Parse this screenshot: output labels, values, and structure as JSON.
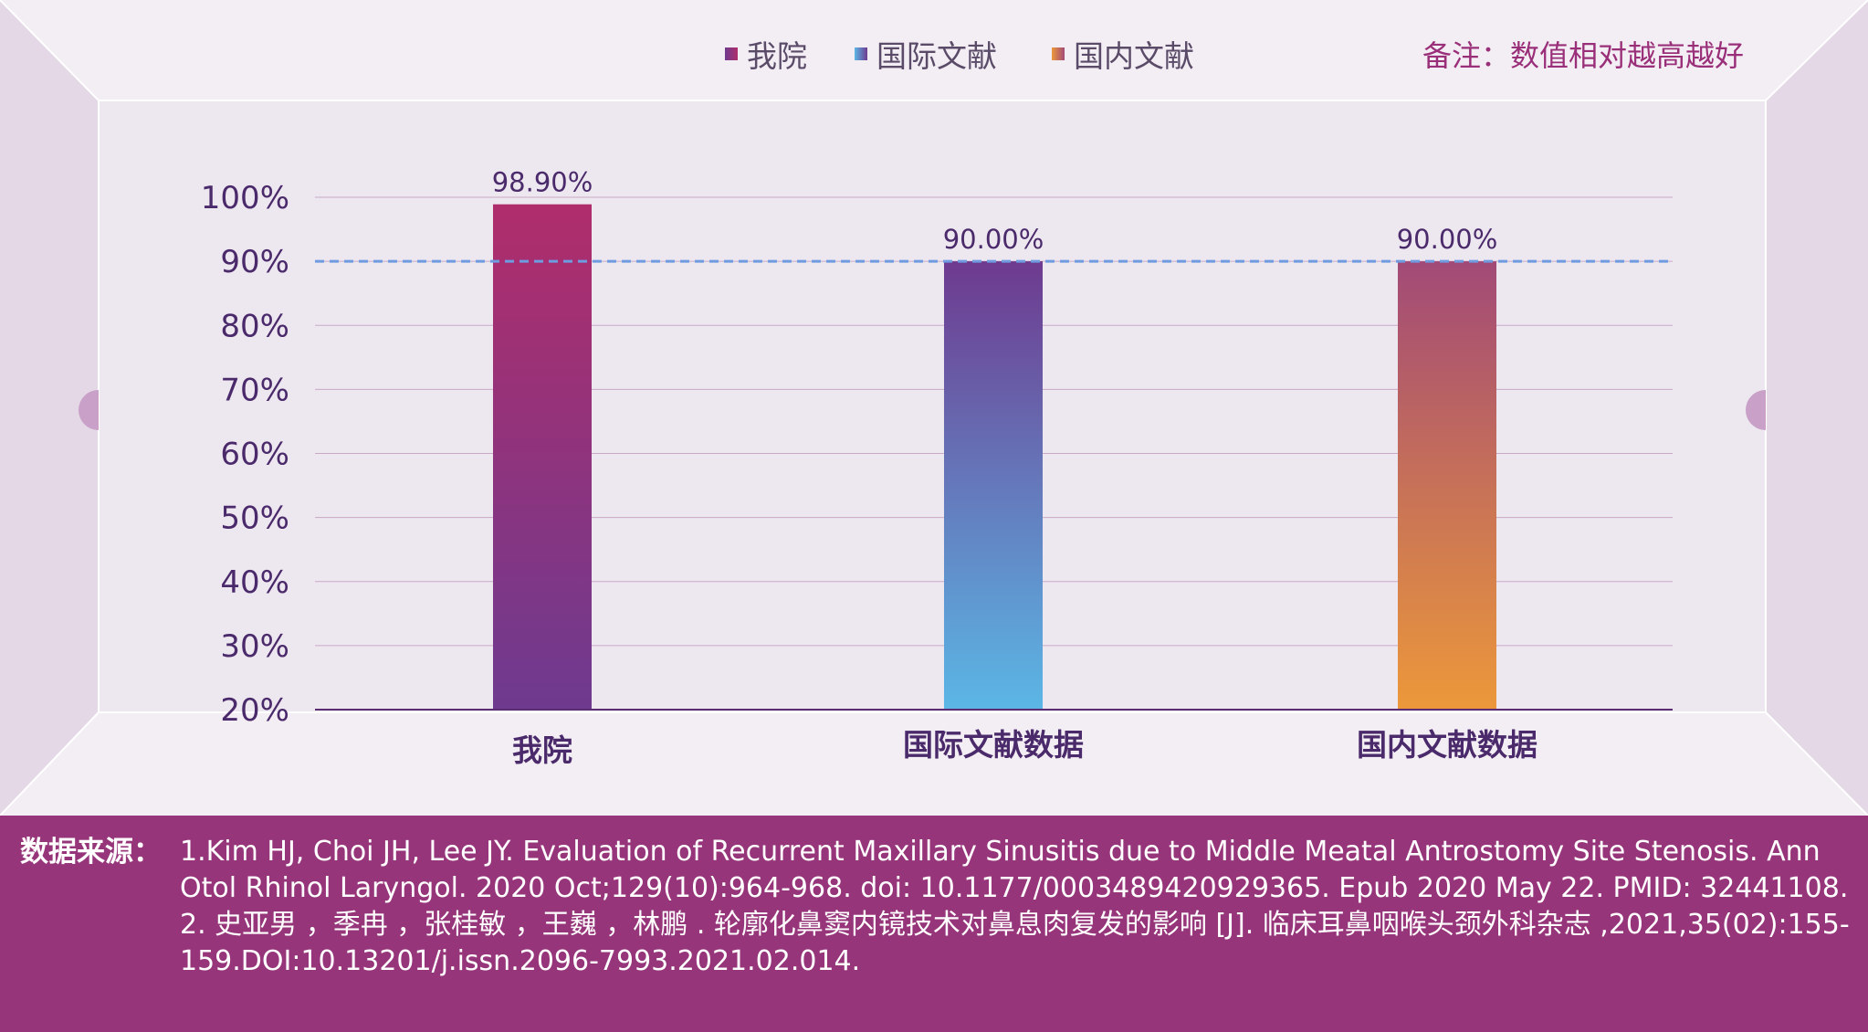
{
  "legend": [
    {
      "label": "我院",
      "color_top": "#b02d6b",
      "color_bottom": "#6e3a8f"
    },
    {
      "label": "国际文献",
      "color_top": "#6e3a8f",
      "color_bottom": "#5bb7e6"
    },
    {
      "label": "国内文献",
      "color_top": "#a24a77",
      "color_bottom": "#ec983a"
    }
  ],
  "note": "备注：数值相对越高越好",
  "colors": {
    "page_background": "#efe8f1",
    "frame_side": "#e4d8e6",
    "grid_line": "#c9a9c6",
    "axis_line": "#5a2d73",
    "axis_text": "#4a2a6a",
    "reference_line": "#6f9be0",
    "footer_background": "#96357a",
    "note_text": "#9a2f79"
  },
  "chart_data": {
    "type": "bar",
    "categories": [
      "我院",
      "国际文献数据",
      "国内文献数据"
    ],
    "values": [
      98.9,
      90.0,
      90.0
    ],
    "value_labels": [
      "98.90%",
      "90.00%",
      "90.00%"
    ],
    "y_ticks": [
      "20%",
      "30%",
      "40%",
      "50%",
      "60%",
      "70%",
      "80%",
      "90%",
      "100%"
    ],
    "y_tick_values": [
      20,
      30,
      40,
      50,
      60,
      70,
      80,
      90,
      100
    ],
    "ylim": [
      20,
      100
    ],
    "reference_line": 90,
    "grid": true,
    "title": "",
    "xlabel": "",
    "ylabel": ""
  },
  "footer": {
    "source_label": "数据来源：",
    "references": [
      "1.Kim HJ, Choi JH, Lee JY. Evaluation of Recurrent Maxillary Sinusitis due to Middle Meatal Antrostomy Site Stenosis. Ann Otol Rhinol Laryngol. 2020 Oct;129(10):964-968. doi: 10.1177/0003489420929365. Epub 2020 May 22. PMID: 32441108.",
      "2. 史亚男 ，季冉 ，张桂敏 ，王巍 ，林鹏 . 轮廓化鼻窦内镜技术对鼻息肉复发的影响 [J]. 临床耳鼻咽喉头颈外科杂志 ,2021,35(02):155-159.DOI:10.13201/j.issn.2096-7993.2021.02.014."
    ]
  }
}
